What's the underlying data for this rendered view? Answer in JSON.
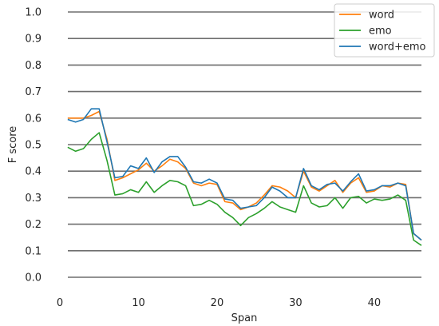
{
  "chart_data": {
    "type": "line",
    "title": "",
    "xlabel": "Span",
    "ylabel": "F score",
    "xlim": [
      0,
      46
    ],
    "ylim": [
      0.0,
      1.0
    ],
    "xticks": [
      0,
      10,
      20,
      30,
      40
    ],
    "yticks": [
      0.0,
      0.1,
      0.2,
      0.3,
      0.4,
      0.5,
      0.6,
      0.7,
      0.8,
      0.9,
      1.0
    ],
    "grid": "horizontal",
    "legend_position": "top-right",
    "x": [
      1,
      2,
      3,
      4,
      5,
      6,
      7,
      8,
      9,
      10,
      11,
      12,
      13,
      14,
      15,
      16,
      17,
      18,
      19,
      20,
      21,
      22,
      23,
      24,
      25,
      26,
      27,
      28,
      29,
      30,
      31,
      32,
      33,
      34,
      35,
      36,
      37,
      38,
      39,
      40,
      41,
      42,
      43,
      44,
      45,
      46
    ],
    "series": [
      {
        "name": "word",
        "color": "#ff7f0e",
        "values": [
          0.6,
          0.6,
          0.6,
          0.61,
          0.625,
          0.52,
          0.365,
          0.375,
          0.39,
          0.405,
          0.43,
          0.4,
          0.42,
          0.445,
          0.435,
          0.41,
          0.355,
          0.345,
          0.355,
          0.35,
          0.285,
          0.28,
          0.255,
          0.265,
          0.28,
          0.31,
          0.345,
          0.34,
          0.325,
          0.3,
          0.4,
          0.34,
          0.325,
          0.345,
          0.365,
          0.32,
          0.355,
          0.375,
          0.32,
          0.325,
          0.345,
          0.34,
          0.355,
          0.35,
          0.165,
          0.14
        ]
      },
      {
        "name": "emo",
        "color": "#2ca02c",
        "values": [
          0.49,
          0.475,
          0.485,
          0.52,
          0.545,
          0.44,
          0.31,
          0.315,
          0.33,
          0.32,
          0.36,
          0.32,
          0.345,
          0.365,
          0.36,
          0.345,
          0.27,
          0.275,
          0.29,
          0.275,
          0.245,
          0.225,
          0.195,
          0.225,
          0.24,
          0.26,
          0.285,
          0.265,
          0.255,
          0.245,
          0.345,
          0.28,
          0.265,
          0.27,
          0.3,
          0.26,
          0.3,
          0.305,
          0.28,
          0.295,
          0.29,
          0.295,
          0.31,
          0.29,
          0.14,
          0.12
        ]
      },
      {
        "name": "word+emo",
        "color": "#1f77b4",
        "values": [
          0.595,
          0.585,
          0.595,
          0.635,
          0.635,
          0.51,
          0.375,
          0.38,
          0.42,
          0.41,
          0.45,
          0.395,
          0.435,
          0.455,
          0.455,
          0.415,
          0.36,
          0.355,
          0.37,
          0.355,
          0.295,
          0.29,
          0.26,
          0.265,
          0.27,
          0.3,
          0.34,
          0.325,
          0.3,
          0.3,
          0.41,
          0.345,
          0.33,
          0.35,
          0.355,
          0.325,
          0.36,
          0.39,
          0.325,
          0.33,
          0.345,
          0.345,
          0.355,
          0.345,
          0.165,
          0.14
        ]
      }
    ]
  }
}
